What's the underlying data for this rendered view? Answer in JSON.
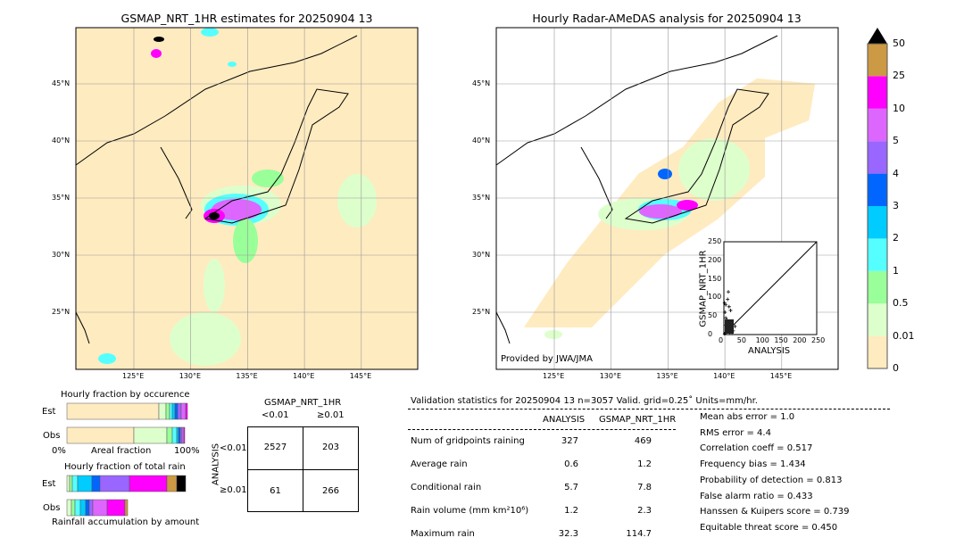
{
  "chart_data": [
    {
      "type": "heatmap",
      "title": "GSMAP_NRT_1HR estimates for 20250904 13",
      "lon_ticks": [
        "125°E",
        "130°E",
        "135°E",
        "140°E",
        "145°E"
      ],
      "lat_ticks": [
        "45°N",
        "40°N",
        "35°N",
        "30°N",
        "25°N"
      ]
    },
    {
      "type": "heatmap",
      "title": "Hourly Radar-AMeDAS analysis for 20250904 13",
      "lon_ticks": [
        "125°E",
        "130°E",
        "135°E",
        "140°E",
        "145°E"
      ],
      "lat_ticks": [
        "45°N",
        "40°N",
        "35°N",
        "30°N",
        "25°N"
      ],
      "annotation": "Provided by JWA/JMA"
    },
    {
      "type": "scatter",
      "xlabel": "ANALYSIS",
      "ylabel": "GSMAP_NRT_1HR",
      "xlim": [
        0,
        250
      ],
      "ylim": [
        0,
        250
      ],
      "ticks": [
        "0",
        "50",
        "100",
        "150",
        "200",
        "250"
      ],
      "points": [
        [
          2,
          85
        ],
        [
          5,
          80
        ],
        [
          10,
          95
        ],
        [
          12,
          115
        ],
        [
          14,
          75
        ],
        [
          18,
          65
        ],
        [
          3,
          60
        ],
        [
          5,
          45
        ],
        [
          8,
          40
        ],
        [
          10,
          30
        ],
        [
          6,
          25
        ],
        [
          15,
          20
        ],
        [
          20,
          15
        ],
        [
          25,
          10
        ],
        [
          30,
          22
        ],
        [
          8,
          12
        ],
        [
          12,
          8
        ],
        [
          4,
          5
        ],
        [
          2,
          2
        ],
        [
          16,
          4
        ],
        [
          22,
          6
        ]
      ]
    },
    {
      "type": "bar",
      "title": "Hourly fraction by occurence",
      "categories": [
        "Est",
        "Obs"
      ],
      "xlabel": "Areal fraction",
      "x_ticks": [
        "0%",
        "100%"
      ]
    },
    {
      "type": "bar",
      "title": "Hourly fraction of total rain",
      "categories": [
        "Est",
        "Obs"
      ],
      "xlabel": "Rainfall accumulation by amount"
    },
    {
      "type": "table",
      "title": "GSMAP_NRT_1HR",
      "ylabel": "ANALYSIS",
      "cols": [
        "<0.01",
        "≥0.01"
      ],
      "rows": [
        "<0.01",
        "≥0.01"
      ],
      "cells": [
        [
          2527,
          203
        ],
        [
          61,
          266
        ]
      ]
    }
  ],
  "colorbar": {
    "ticks": [
      "0",
      "0.01",
      "0.5",
      "1",
      "2",
      "3",
      "4",
      "5",
      "10",
      "25",
      "50"
    ],
    "colors": [
      "#ffebc0",
      "#ddffcc",
      "#99ff99",
      "#55ffff",
      "#00ccff",
      "#0066ff",
      "#9966ff",
      "#dd66ff",
      "#ff00ff",
      "#cc9944"
    ],
    "extend_color": "#000000"
  },
  "stats": {
    "header": "Validation statistics for 20250904 13  n=3057 Valid. grid=0.25˚ Units=mm/hr.",
    "col_analysis": "ANALYSIS",
    "col_gsmap": "GSMAP_NRT_1HR",
    "rows": [
      {
        "label": "Num of gridpoints raining",
        "a": "327",
        "g": "469"
      },
      {
        "label": "Average rain",
        "a": "0.6",
        "g": "1.2"
      },
      {
        "label": "Conditional rain",
        "a": "5.7",
        "g": "7.8"
      },
      {
        "label": "Rain volume (mm km²10⁶)",
        "a": "1.2",
        "g": "2.3"
      },
      {
        "label": "Maximum rain",
        "a": "32.3",
        "g": "114.7"
      }
    ],
    "scores": [
      "Mean abs error =    1.0",
      "RMS error =    4.4",
      "Correlation coeff =  0.517",
      "Frequency bias =  1.434",
      "Probability of detection =  0.813",
      "False alarm ratio =  0.433",
      "Hanssen & Kuipers score =  0.739",
      "Equitable threat score =  0.450"
    ]
  }
}
